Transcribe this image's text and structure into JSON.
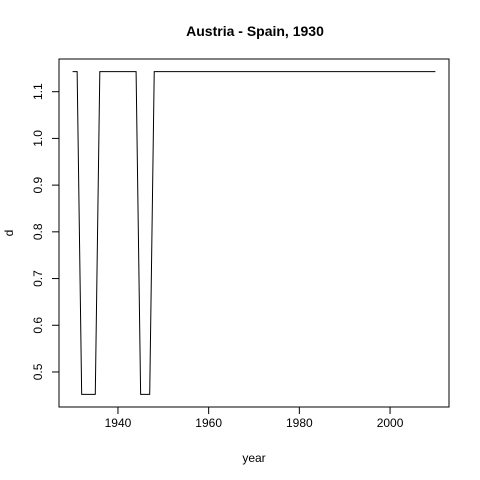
{
  "chart_data": {
    "type": "line",
    "title": "Austria - Spain, 1930",
    "xlabel": "year",
    "ylabel": "d",
    "xlim": [
      1927,
      2013
    ],
    "ylim": [
      0.425,
      1.17
    ],
    "x_ticks": [
      1940,
      1960,
      1980,
      2000
    ],
    "y_ticks": [
      0.5,
      0.6,
      0.7,
      0.8,
      0.9,
      1.0,
      1.1
    ],
    "y_tick_labels": [
      "0.5",
      "0.6",
      "0.7",
      "0.8",
      "0.9",
      "1.0",
      "1.1"
    ],
    "grid": false,
    "legend": "none",
    "line_color": "#000000",
    "series": [
      {
        "x": [
          1930,
          1931,
          1932,
          1933,
          1934,
          1935,
          1936,
          1937,
          1938,
          1939,
          1940,
          1941,
          1942,
          1943,
          1944,
          1945,
          1946,
          1947,
          1948,
          1949,
          1950,
          1960,
          1970,
          1980,
          1990,
          2000,
          2010
        ],
        "y": [
          1.143,
          1.143,
          0.452,
          0.452,
          0.452,
          0.452,
          1.143,
          1.143,
          1.143,
          1.143,
          1.143,
          1.143,
          1.143,
          1.143,
          1.143,
          0.452,
          0.452,
          0.452,
          1.143,
          1.143,
          1.143,
          1.143,
          1.143,
          1.143,
          1.143,
          1.143,
          1.143
        ]
      }
    ]
  }
}
